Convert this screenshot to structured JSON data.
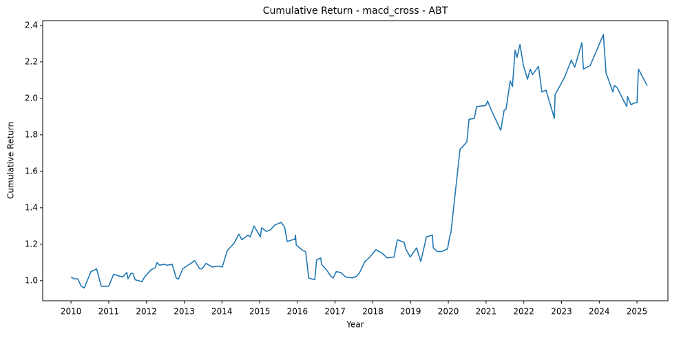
{
  "chart_data": {
    "type": "line",
    "title": "Cumulative Return - macd_cross - ABT",
    "x_label": "Year",
    "y_label": "Cumulative Return",
    "series": [
      {
        "color": "#1f77b4",
        "x": [
          2010.0,
          2010.09,
          2010.18,
          2010.27,
          2010.35,
          2010.53,
          2010.68,
          2010.8,
          2011.0,
          2011.13,
          2011.37,
          2011.48,
          2011.51,
          2011.59,
          2011.64,
          2011.7,
          2011.88,
          2011.95,
          2012.12,
          2012.23,
          2012.28,
          2012.35,
          2012.46,
          2012.54,
          2012.68,
          2012.79,
          2012.85,
          2012.96,
          2013.28,
          2013.41,
          2013.47,
          2013.58,
          2013.74,
          2013.89,
          2014.01,
          2014.14,
          2014.32,
          2014.45,
          2014.53,
          2014.69,
          2014.75,
          2014.85,
          2015.02,
          2015.05,
          2015.18,
          2015.29,
          2015.4,
          2015.57,
          2015.66,
          2015.73,
          2015.88,
          2015.93,
          2015.95,
          2015.97,
          2016.15,
          2016.22,
          2016.3,
          2016.46,
          2016.51,
          2016.62,
          2016.64,
          2016.79,
          2016.88,
          2016.95,
          2017.03,
          2017.15,
          2017.28,
          2017.46,
          2017.57,
          2017.65,
          2017.79,
          2017.92,
          2018.08,
          2018.25,
          2018.38,
          2018.56,
          2018.65,
          2018.83,
          2018.87,
          2018.99,
          2019.16,
          2019.27,
          2019.42,
          2019.58,
          2019.6,
          2019.71,
          2019.82,
          2019.98,
          2020.04,
          2020.07,
          2020.31,
          2020.49,
          2020.53,
          2020.55,
          2020.69,
          2020.75,
          2020.99,
          2021.04,
          2021.15,
          2021.39,
          2021.48,
          2021.53,
          2021.64,
          2021.7,
          2021.77,
          2021.82,
          2021.9,
          2021.99,
          2022.1,
          2022.17,
          2022.23,
          2022.39,
          2022.48,
          2022.59,
          2022.81,
          2022.83,
          2023.08,
          2023.26,
          2023.35,
          2023.54,
          2023.58,
          2023.76,
          2024.11,
          2024.18,
          2024.36,
          2024.4,
          2024.47,
          2024.64,
          2024.73,
          2024.75,
          2024.84,
          2024.93,
          2025.0,
          2025.04,
          2025.27
        ],
        "values": [
          1.02,
          1.01,
          1.01,
          0.97,
          0.96,
          1.05,
          1.065,
          0.97,
          0.97,
          1.035,
          1.02,
          1.045,
          1.01,
          1.04,
          1.04,
          1.005,
          0.995,
          1.02,
          1.06,
          1.07,
          1.1,
          1.085,
          1.09,
          1.085,
          1.09,
          1.015,
          1.01,
          1.065,
          1.11,
          1.065,
          1.065,
          1.095,
          1.075,
          1.08,
          1.075,
          1.165,
          1.205,
          1.255,
          1.225,
          1.25,
          1.24,
          1.3,
          1.24,
          1.29,
          1.27,
          1.28,
          1.305,
          1.32,
          1.295,
          1.215,
          1.225,
          1.225,
          1.25,
          1.195,
          1.165,
          1.16,
          1.015,
          1.005,
          1.115,
          1.125,
          1.09,
          1.055,
          1.025,
          1.015,
          1.05,
          1.045,
          1.02,
          1.015,
          1.025,
          1.045,
          1.105,
          1.13,
          1.17,
          1.15,
          1.125,
          1.13,
          1.225,
          1.21,
          1.175,
          1.13,
          1.18,
          1.105,
          1.24,
          1.25,
          1.18,
          1.16,
          1.16,
          1.175,
          1.245,
          1.265,
          1.72,
          1.76,
          1.845,
          1.885,
          1.89,
          1.955,
          1.96,
          1.985,
          1.93,
          1.825,
          1.935,
          1.94,
          2.095,
          2.065,
          2.265,
          2.225,
          2.295,
          2.18,
          2.105,
          2.16,
          2.13,
          2.175,
          2.035,
          2.045,
          1.89,
          2.02,
          2.115,
          2.21,
          2.17,
          2.305,
          2.16,
          2.18,
          2.35,
          2.14,
          2.035,
          2.07,
          2.06,
          1.99,
          1.955,
          2.01,
          1.965,
          1.975,
          1.975,
          2.16,
          2.07
        ]
      }
    ],
    "xlim": [
      2009.25,
      2025.82
    ],
    "xticks": [
      2010,
      2011,
      2012,
      2013,
      2014,
      2015,
      2016,
      2017,
      2018,
      2019,
      2020,
      2021,
      2022,
      2023,
      2024,
      2025
    ],
    "ylim": [
      0.89,
      2.426
    ],
    "yticks": [
      {
        "value": 1.0,
        "label": "1.0"
      },
      1.2,
      1.4,
      1.6,
      1.8,
      {
        "value": 2.0,
        "label": "2.0"
      },
      2.2,
      2.4
    ],
    "grid": false
  }
}
